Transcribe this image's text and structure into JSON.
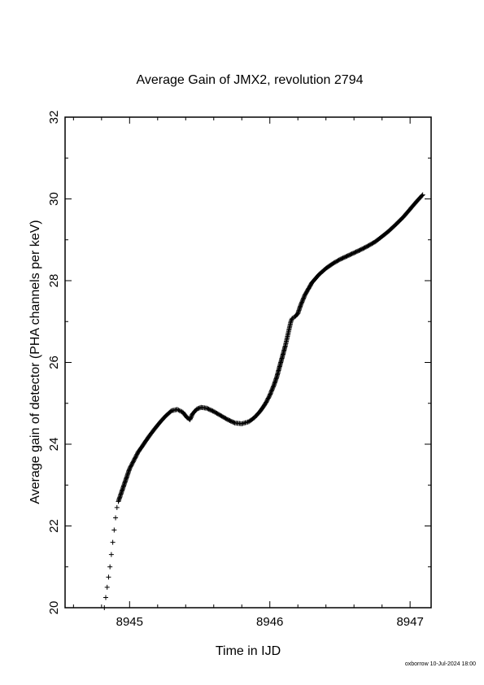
{
  "chart_data": {
    "type": "scatter",
    "title": "Average Gain of JMX2, revolution 2794",
    "xlabel": "Time in IJD",
    "ylabel": "Average gain of detector (PHA channels per keV)",
    "xlim": [
      8944.54,
      8947.15
    ],
    "ylim": [
      20,
      32
    ],
    "xticks": [
      8945,
      8946,
      8947
    ],
    "yticks": [
      20,
      22,
      24,
      26,
      28,
      30,
      32
    ],
    "grid": false,
    "marker": "plus",
    "marker_color": "#000000",
    "series": [
      {
        "x": [
          8944.82,
          8944.83,
          8944.84,
          8944.85,
          8944.86,
          8944.87,
          8944.88,
          8944.89,
          8944.9,
          8944.91,
          8944.92,
          8944.94,
          8944.96,
          8944.98,
          8945.0,
          8945.03,
          8945.06,
          8945.1,
          8945.14,
          8945.18,
          8945.22,
          8945.26,
          8945.3,
          8945.34,
          8945.38,
          8945.41,
          8945.43,
          8945.45,
          8945.48,
          8945.51,
          8945.55,
          8945.6,
          8945.65,
          8945.7,
          8945.75,
          8945.8,
          8945.85,
          8945.89,
          8945.93,
          8945.97,
          8946.0,
          8946.03,
          8946.05,
          8946.07,
          8946.09,
          8946.11,
          8946.12,
          8946.13,
          8946.14,
          8946.15,
          8946.16,
          8946.17,
          8946.18,
          8946.2,
          8946.22,
          8946.25,
          8946.3,
          8946.35,
          8946.4,
          8946.45,
          8946.5,
          8946.55,
          8946.6,
          8946.65,
          8946.7,
          8946.75,
          8946.8,
          8946.85,
          8946.9,
          8946.95,
          8947.0,
          8947.05,
          8947.09
        ],
        "y": [
          20.0,
          20.25,
          20.5,
          20.75,
          21.0,
          21.3,
          21.6,
          21.9,
          22.2,
          22.45,
          22.6,
          22.8,
          23.0,
          23.2,
          23.4,
          23.6,
          23.8,
          24.0,
          24.2,
          24.38,
          24.55,
          24.7,
          24.82,
          24.85,
          24.78,
          24.65,
          24.6,
          24.75,
          24.86,
          24.9,
          24.88,
          24.8,
          24.7,
          24.6,
          24.52,
          24.5,
          24.55,
          24.65,
          24.8,
          25.0,
          25.2,
          25.45,
          25.65,
          25.9,
          26.15,
          26.4,
          26.55,
          26.7,
          26.85,
          27.0,
          27.08,
          27.1,
          27.12,
          27.2,
          27.4,
          27.65,
          27.95,
          28.15,
          28.3,
          28.42,
          28.52,
          28.6,
          28.68,
          28.76,
          28.85,
          28.95,
          29.08,
          29.22,
          29.38,
          29.55,
          29.75,
          29.95,
          30.1
        ]
      }
    ]
  },
  "footer": {
    "text": "oxborrow 10-Jul-2024 18:00"
  }
}
